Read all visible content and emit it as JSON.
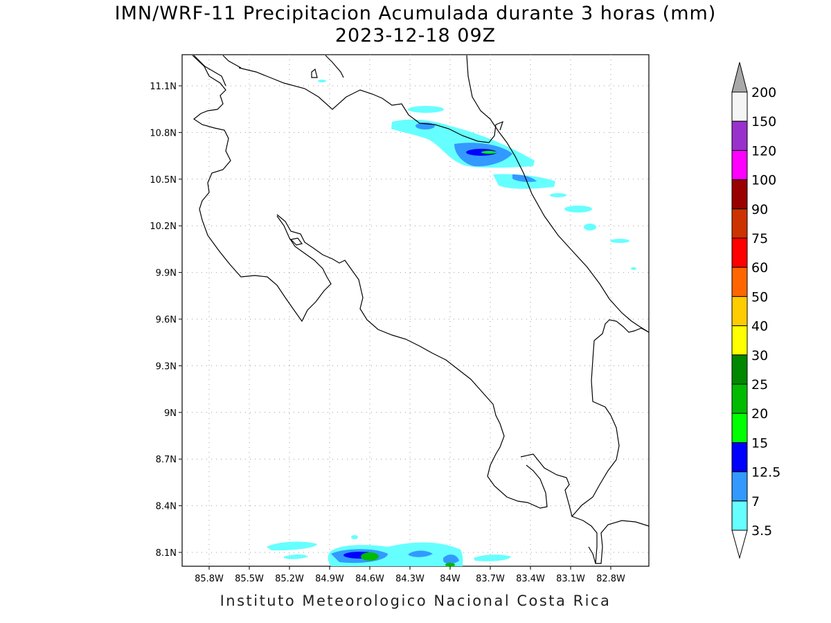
{
  "title": "IMN/WRF-11 Precipitacion Acumulada durante 3 horas (mm)",
  "subtitle": "2023-12-18 09Z",
  "footer": "Instituto Meteorologico Nacional Costa Rica",
  "map": {
    "lon_ticks": [
      "85.8W",
      "85.5W",
      "85.2W",
      "84.9W",
      "84.6W",
      "84.3W",
      "84W",
      "83.7W",
      "83.4W",
      "83.1W",
      "82.8W"
    ],
    "lat_ticks": [
      "11.1N",
      "10.8N",
      "10.5N",
      "10.2N",
      "9.9N",
      "9.6N",
      "9.3N",
      "9N",
      "8.7N",
      "8.4N",
      "8.1N"
    ],
    "grid": true
  },
  "colorbar": {
    "levels": [
      "200",
      "150",
      "120",
      "100",
      "90",
      "75",
      "60",
      "50",
      "40",
      "30",
      "25",
      "20",
      "15",
      "12.5",
      "7",
      "3.5"
    ],
    "colors": [
      "#f5f5f5",
      "#9932cc",
      "#ff00ff",
      "#990000",
      "#cc3300",
      "#ff0000",
      "#ff6600",
      "#ffcc00",
      "#ffff00",
      "#008800",
      "#00bb00",
      "#00ff00",
      "#0000ff",
      "#3399ff",
      "#66ffff"
    ],
    "overflow_color": "#a8a8a8"
  }
}
